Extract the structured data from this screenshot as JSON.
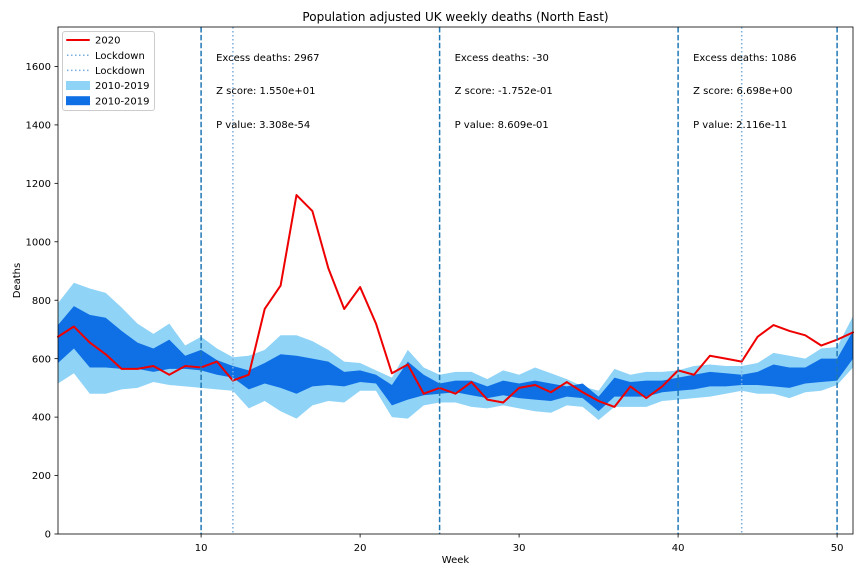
{
  "chart_data": {
    "type": "line",
    "title": "Population adjusted UK weekly deaths (North East)",
    "xlabel": "Week",
    "ylabel": "Deaths",
    "xlim": [
      1,
      51
    ],
    "ylim": [
      0,
      1735
    ],
    "xticks": [
      "10",
      "20",
      "30",
      "40",
      "50"
    ],
    "yticks": [
      "0",
      "200",
      "400",
      "600",
      "800",
      "1000",
      "1200",
      "1400",
      "1600"
    ],
    "grid": false,
    "legend_position": "top-left",
    "x": [
      1,
      2,
      3,
      4,
      5,
      6,
      7,
      8,
      9,
      10,
      11,
      12,
      13,
      14,
      15,
      16,
      17,
      18,
      19,
      20,
      21,
      22,
      23,
      24,
      25,
      26,
      27,
      28,
      29,
      30,
      31,
      32,
      33,
      34,
      35,
      36,
      37,
      38,
      39,
      40,
      41,
      42,
      43,
      44,
      45,
      46,
      47,
      48,
      49,
      50,
      51
    ],
    "series": [
      {
        "name": "2020",
        "color": "#ee0000",
        "values": [
          675,
          710,
          655,
          615,
          565,
          565,
          575,
          545,
          575,
          570,
          590,
          525,
          545,
          770,
          850,
          1160,
          1105,
          910,
          770,
          845,
          720,
          550,
          580,
          480,
          500,
          480,
          520,
          460,
          450,
          500,
          510,
          485,
          520,
          485,
          455,
          435,
          505,
          465,
          505,
          560,
          545,
          610,
          600,
          590,
          675,
          715,
          695,
          680,
          645,
          665,
          690
        ]
      },
      {
        "name": "2010-2019",
        "color": "#8fd3f7",
        "upper": [
          790,
          860,
          840,
          825,
          775,
          720,
          685,
          720,
          645,
          675,
          635,
          605,
          610,
          630,
          680,
          680,
          660,
          630,
          590,
          585,
          560,
          535,
          630,
          570,
          545,
          555,
          555,
          530,
          560,
          545,
          570,
          550,
          530,
          505,
          490,
          565,
          545,
          555,
          555,
          560,
          575,
          580,
          575,
          575,
          585,
          620,
          610,
          600,
          635,
          640,
          745
        ],
        "lower": [
          515,
          550,
          480,
          480,
          495,
          500,
          520,
          510,
          505,
          500,
          495,
          490,
          430,
          455,
          420,
          395,
          440,
          455,
          450,
          490,
          490,
          400,
          395,
          440,
          450,
          450,
          435,
          430,
          440,
          430,
          420,
          415,
          440,
          435,
          390,
          435,
          435,
          435,
          455,
          460,
          465,
          470,
          480,
          490,
          480,
          480,
          465,
          485,
          490,
          510,
          570
        ]
      },
      {
        "name": "2010-2019",
        "color": "#0f70e6",
        "upper": [
          715,
          780,
          750,
          740,
          695,
          655,
          635,
          665,
          610,
          630,
          595,
          575,
          560,
          585,
          615,
          610,
          600,
          590,
          555,
          560,
          545,
          510,
          590,
          545,
          515,
          525,
          525,
          505,
          525,
          515,
          525,
          515,
          505,
          515,
          470,
          535,
          520,
          525,
          525,
          535,
          545,
          555,
          550,
          545,
          555,
          580,
          570,
          570,
          600,
          600,
          695
        ],
        "lower": [
          585,
          635,
          570,
          570,
          565,
          565,
          555,
          565,
          565,
          560,
          545,
          535,
          495,
          515,
          500,
          480,
          505,
          510,
          505,
          520,
          515,
          440,
          460,
          475,
          480,
          485,
          475,
          465,
          475,
          465,
          460,
          455,
          470,
          465,
          420,
          470,
          470,
          470,
          485,
          490,
          495,
          505,
          505,
          510,
          510,
          505,
          500,
          515,
          520,
          525,
          600
        ]
      }
    ],
    "lockdowns": [
      {
        "name": "Lockdown",
        "x": 12,
        "color": "#78aede"
      },
      {
        "name": "Lockdown",
        "x": 44,
        "color": "#78aede"
      }
    ],
    "period_lines": {
      "x": [
        10,
        25,
        40,
        50
      ],
      "color": "#1f77b4"
    },
    "annotations": [
      [
        "Excess deaths: 2967",
        "Z score: 1.550e+01",
        "P value: 3.308e-54"
      ],
      [
        "Excess deaths: -30",
        "Z score: -1.752e-01",
        "P value: 8.609e-01"
      ],
      [
        "Excess deaths: 1086",
        "Z score: 6.698e+00",
        "P value: 2.116e-11"
      ]
    ]
  }
}
